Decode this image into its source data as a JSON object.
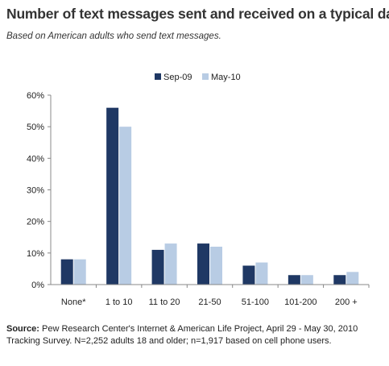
{
  "title": "Number of text messages sent and received on a typical day",
  "subtitle": "Based on American  adults who send text messages.",
  "source": {
    "label": "Source:",
    "text": "Pew Research Center's Internet & American Life Project, April 29 - May 30, 2010 Tracking Survey. N=2,252 adults 18 and older; n=1,917 based on cell phone users."
  },
  "colors": {
    "series1": "#1f3864",
    "series2": "#b8cce4",
    "axis": "#888888"
  },
  "chart_data": {
    "type": "bar",
    "categories": [
      "None*",
      "1 to 10",
      "11 to 20",
      "21-50",
      "51-100",
      "101-200",
      "200 +"
    ],
    "series": [
      {
        "name": "Sep-09",
        "values": [
          8,
          56,
          11,
          13,
          6,
          3,
          3
        ]
      },
      {
        "name": "May-10",
        "values": [
          8,
          50,
          13,
          12,
          7,
          3,
          4
        ]
      }
    ],
    "y_ticks": [
      "0%",
      "10%",
      "20%",
      "30%",
      "40%",
      "50%",
      "60%"
    ],
    "ylim": [
      0,
      60
    ],
    "legend_position": "top-right",
    "grid": false
  }
}
